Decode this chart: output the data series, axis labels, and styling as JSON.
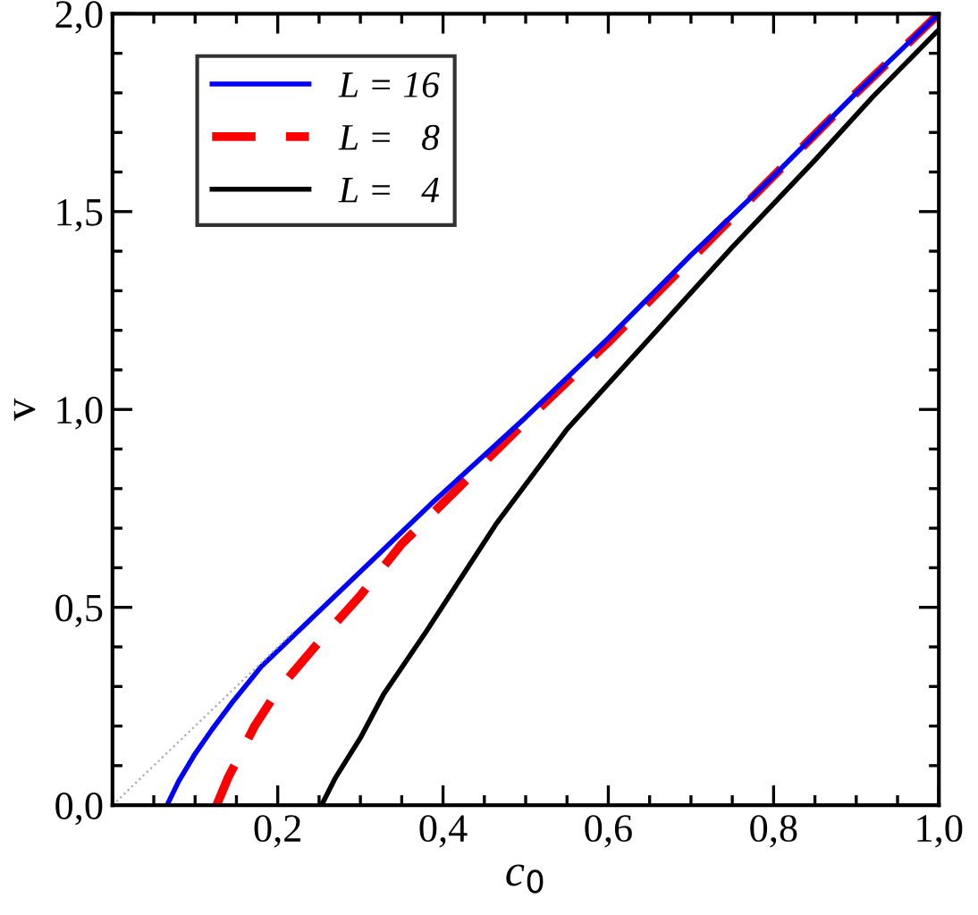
{
  "chart_data": {
    "type": "line",
    "xlabel": "c$_{0}$",
    "ylabel": "v",
    "xlim": [
      0,
      1.0
    ],
    "ylim": [
      0,
      2.0
    ],
    "xticks": [
      {
        "value": 0.2,
        "label": "0,2"
      },
      {
        "value": 0.4,
        "label": "0,4"
      },
      {
        "value": 0.6,
        "label": "0,6"
      },
      {
        "value": 0.8,
        "label": "0,8"
      },
      {
        "value": 1.0,
        "label": "1,0"
      }
    ],
    "yticks": [
      {
        "value": 0,
        "label": "0,0"
      },
      {
        "value": 0.5,
        "label": "0,5"
      },
      {
        "value": 1.0,
        "label": "1,0"
      },
      {
        "value": 1.5,
        "label": "1,5"
      },
      {
        "value": 2.0,
        "label": "2,0"
      }
    ],
    "grid": false,
    "legend": "top left",
    "marker": "none",
    "series": [
      {
        "name": "L = 16",
        "color": "#0000ff",
        "line_style": "solid",
        "x": [
          0.066,
          0.08,
          0.1,
          0.12,
          0.145,
          0.18,
          0.23,
          0.3,
          0.39,
          0.5,
          0.6,
          0.7,
          0.8,
          0.9,
          1.0
        ],
        "values": [
          0,
          0.06,
          0.13,
          0.19,
          0.26,
          0.35,
          0.45,
          0.59,
          0.77,
          0.98,
          1.18,
          1.39,
          1.59,
          1.8,
          2.0
        ]
      },
      {
        "name": "L =   8",
        "color": "#ff0000",
        "line_style": "dashed",
        "x": [
          0.126,
          0.14,
          0.155,
          0.172,
          0.2,
          0.257,
          0.3,
          0.35,
          0.413,
          0.5,
          0.6,
          0.7,
          0.8,
          0.9,
          1.0
        ],
        "values": [
          0,
          0.07,
          0.13,
          0.2,
          0.29,
          0.43,
          0.53,
          0.66,
          0.79,
          0.97,
          1.17,
          1.38,
          1.59,
          1.8,
          2.0
        ]
      },
      {
        "name": "L =   4",
        "color": "#000000",
        "line_style": "solid",
        "x": [
          0.253,
          0.27,
          0.3,
          0.328,
          0.38,
          0.464,
          0.55,
          0.65,
          0.75,
          0.85,
          0.92,
          1.0
        ],
        "values": [
          0,
          0.07,
          0.17,
          0.28,
          0.44,
          0.71,
          0.95,
          1.18,
          1.41,
          1.63,
          1.79,
          1.96
        ]
      },
      {
        "color": "#aaaaaa",
        "line_style": "dotted",
        "x": [
          0,
          0.22
        ],
        "values": [
          0,
          0.44
        ]
      }
    ]
  }
}
